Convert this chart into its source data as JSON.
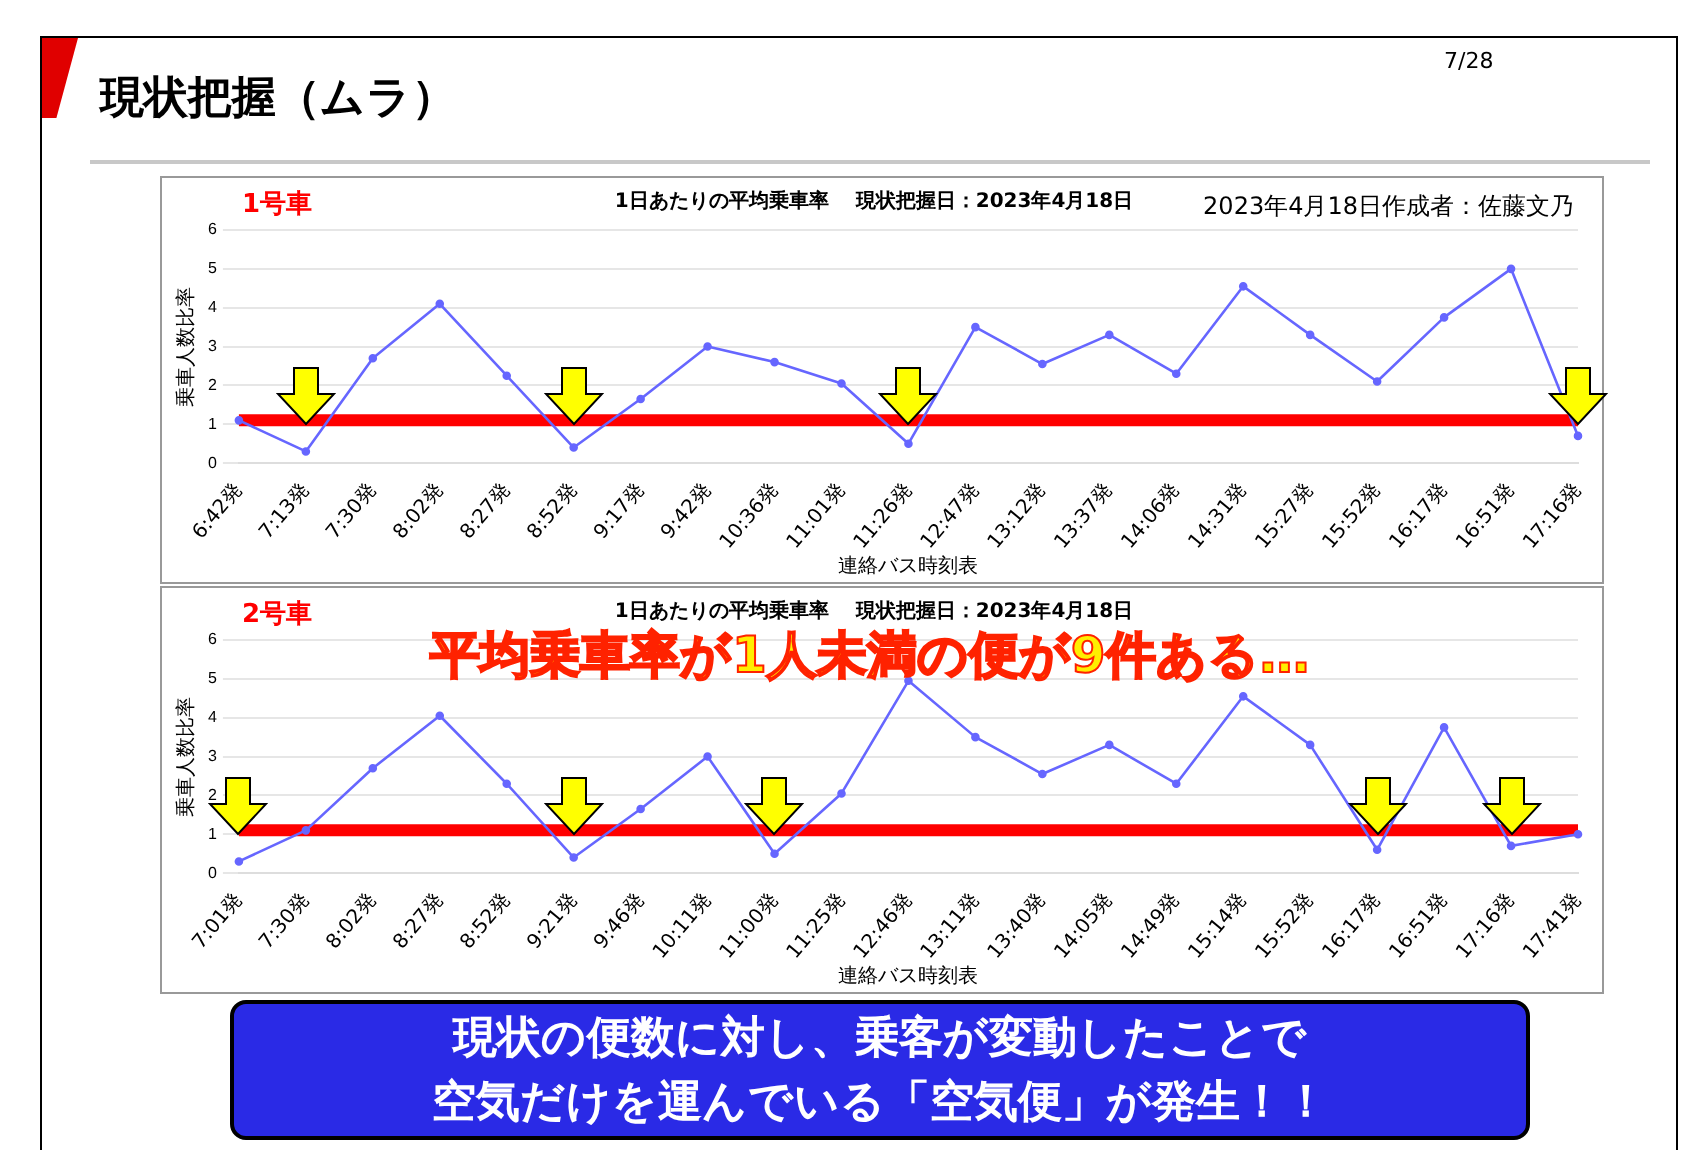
{
  "chart_data": [
    {
      "type": "line",
      "title": "1日あたりの平均乗車率　 現状把握日：2023年4月18日",
      "subtitle": "1号車",
      "xlabel": "連絡バス時刻表",
      "ylabel": "乗車人数比率",
      "annotations": [
        "現状把握（ムラ）",
        "7/28",
        "2023年4月18日作成者：佐藤文乃"
      ],
      "categories": [
        "6:42発",
        "7:13発",
        "7:30発",
        "8:02発",
        "8:27発",
        "8:52発",
        "9:17発",
        "9:42発",
        "10:36発",
        "11:01発",
        "11:26発",
        "12:47発",
        "13:12発",
        "13:37発",
        "14:06発",
        "14:31発",
        "15:27発",
        "15:52発",
        "16:17発",
        "16:51発",
        "17:16発"
      ],
      "series": [
        {
          "color": "#6666ff",
          "values": [
            1.1,
            0.3,
            2.7,
            4.1,
            2.25,
            0.4,
            1.65,
            3.0,
            2.6,
            2.05,
            0.5,
            3.5,
            2.55,
            3.3,
            2.3,
            4.55,
            3.3,
            2.1,
            3.75,
            5.0,
            0.7
          ]
        }
      ],
      "ylim": [
        0,
        6
      ],
      "yticks": [
        0,
        1,
        2,
        3,
        4,
        5,
        6
      ],
      "grid": "y",
      "legend": false,
      "marker": "circle",
      "line_style": "solid",
      "ref_lines": [
        {
          "axis": "y",
          "value": 1.1,
          "label": null,
          "color": "#ff0000"
        }
      ]
    },
    {
      "type": "line",
      "title": "1日あたりの平均乗車率　 現状把握日：2023年4月18日",
      "subtitle": "2号車",
      "xlabel": "連絡バス時刻表",
      "ylabel": "乗車人数比率",
      "annotations": [
        "平均乗車率が1人未満の便が9件ある…",
        "現状の便数に対し、乗客が変動したことで",
        "空気だけを運んでいる「空気便」が発生！！"
      ],
      "categories": [
        "7:01発",
        "7:30発",
        "8:02発",
        "8:27発",
        "8:52発",
        "9:21発",
        "9:46発",
        "10:11発",
        "11:00発",
        "11:25発",
        "12:46発",
        "13:11発",
        "13:40発",
        "14:05発",
        "14:49発",
        "15:14発",
        "15:52発",
        "16:17発",
        "16:51発",
        "17:16発",
        "17:41発"
      ],
      "series": [
        {
          "color": "#6666ff",
          "values": [
            0.3,
            1.1,
            2.7,
            4.05,
            2.3,
            0.4,
            1.65,
            3.0,
            0.5,
            2.05,
            4.95,
            3.5,
            2.55,
            3.3,
            2.3,
            4.55,
            3.3,
            0.6,
            3.75,
            0.7,
            1.0
          ]
        }
      ],
      "ylim": [
        0,
        6
      ],
      "yticks": [
        0,
        1,
        2,
        3,
        4,
        5,
        6
      ],
      "grid": "y",
      "legend": false,
      "marker": "circle",
      "line_style": "solid",
      "ref_lines": [
        {
          "axis": "y",
          "value": 1.1,
          "label": null,
          "color": "#ff0000"
        }
      ]
    }
  ]
}
